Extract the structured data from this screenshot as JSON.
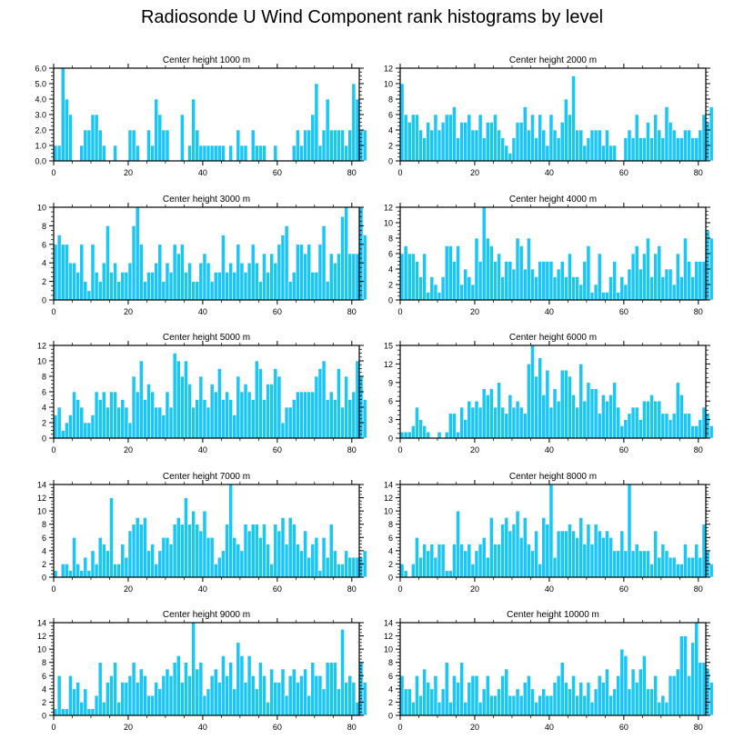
{
  "title": "Radiosonde U Wind Component rank histograms by level",
  "colors": {
    "bar": "#19c6f5",
    "bar_edge": "#ffffff",
    "axis": "#000000"
  },
  "chart_data": [
    {
      "type": "bar",
      "title": "Center height 1000 m",
      "xlim": [
        0,
        82
      ],
      "ylim": [
        0,
        6
      ],
      "xticks": [
        "0",
        "20",
        "40",
        "60",
        "80"
      ],
      "yticks": [
        "0.0",
        "1.0",
        "2.0",
        "3.0",
        "4.0",
        "5.0",
        "6.0"
      ],
      "values": [
        1,
        1,
        6,
        4,
        3,
        0,
        0,
        1,
        2,
        2,
        3,
        3,
        2,
        1,
        0,
        0,
        1,
        0,
        0,
        0,
        2,
        2,
        1,
        0,
        0,
        2,
        1,
        4,
        3,
        2,
        2,
        0,
        0,
        0,
        3,
        0,
        1,
        4,
        2,
        1,
        1,
        1,
        1,
        1,
        1,
        1,
        0,
        1,
        0,
        2,
        1,
        1,
        0,
        2,
        1,
        1,
        1,
        0,
        0,
        1,
        0,
        0,
        0,
        0,
        1,
        2,
        1,
        2,
        2,
        3,
        5,
        1,
        2,
        4,
        2,
        2,
        2,
        2,
        1,
        2,
        5,
        4,
        2,
        2
      ]
    },
    {
      "type": "bar",
      "title": "Center height 2000 m",
      "xlim": [
        0,
        82
      ],
      "ylim": [
        0,
        12
      ],
      "xticks": [
        "0",
        "20",
        "40",
        "60",
        "80"
      ],
      "yticks": [
        "0",
        "2",
        "4",
        "6",
        "8",
        "10",
        "12"
      ],
      "values": [
        10,
        6,
        5,
        6,
        6,
        4,
        3,
        5,
        4,
        6,
        4,
        5,
        6,
        6,
        7,
        3,
        5,
        5,
        6,
        4,
        4,
        6,
        3,
        5,
        5,
        6,
        4,
        3,
        2,
        1,
        3,
        5,
        5,
        7,
        4,
        6,
        3,
        6,
        4,
        2,
        6,
        4,
        3,
        5,
        8,
        6,
        11,
        4,
        4,
        2,
        3,
        4,
        4,
        4,
        2,
        4,
        2,
        2,
        0,
        0,
        3,
        4,
        3,
        6,
        3,
        3,
        5,
        3,
        6,
        4,
        3,
        7,
        5,
        4,
        3,
        3,
        4,
        4,
        3,
        3,
        4,
        6,
        5,
        7
      ]
    },
    {
      "type": "bar",
      "title": "Center height 3000 m",
      "xlim": [
        0,
        82
      ],
      "ylim": [
        0,
        10
      ],
      "xticks": [
        "0",
        "20",
        "40",
        "60",
        "80"
      ],
      "yticks": [
        "0",
        "2",
        "4",
        "6",
        "8",
        "10"
      ],
      "values": [
        6,
        7,
        6,
        6,
        4,
        4,
        3,
        6,
        2,
        1,
        6,
        3,
        2,
        4,
        8,
        3,
        4,
        2,
        3,
        3,
        4,
        8,
        10,
        6,
        2,
        3,
        3,
        4,
        6,
        2,
        4,
        3,
        6,
        5,
        6,
        3,
        4,
        2,
        2,
        4,
        5,
        4,
        2,
        3,
        3,
        7,
        3,
        4,
        3,
        6,
        4,
        3,
        4,
        6,
        4,
        2,
        5,
        3,
        5,
        4,
        6,
        7,
        8,
        2,
        3,
        6,
        6,
        5,
        6,
        3,
        3,
        6,
        8,
        2,
        5,
        4,
        5,
        9,
        10,
        5,
        5,
        5,
        10,
        7
      ]
    },
    {
      "type": "bar",
      "title": "Center height 4000 m",
      "xlim": [
        0,
        82
      ],
      "ylim": [
        0,
        12
      ],
      "xticks": [
        "0",
        "20",
        "40",
        "60",
        "80"
      ],
      "yticks": [
        "0",
        "2",
        "4",
        "6",
        "8",
        "10",
        "12"
      ],
      "values": [
        6,
        7,
        6,
        6,
        5,
        3,
        6,
        1,
        3,
        2,
        1,
        3,
        7,
        7,
        5,
        7,
        2,
        4,
        3,
        2,
        8,
        5,
        12,
        8,
        7,
        5,
        6,
        3,
        5,
        5,
        4,
        8,
        7,
        4,
        8,
        4,
        3,
        5,
        5,
        5,
        5,
        3,
        4,
        5,
        3,
        6,
        3,
        3,
        2,
        5,
        7,
        1,
        2,
        6,
        1,
        1,
        3,
        5,
        1,
        3,
        2,
        4,
        6,
        7,
        4,
        6,
        8,
        3,
        6,
        7,
        3,
        4,
        4,
        2,
        6,
        3,
        8,
        5,
        3,
        5,
        5,
        5,
        9,
        8
      ]
    },
    {
      "type": "bar",
      "title": "Center height 5000 m",
      "xlim": [
        0,
        82
      ],
      "ylim": [
        0,
        12
      ],
      "xticks": [
        "0",
        "20",
        "40",
        "60",
        "80"
      ],
      "yticks": [
        "0",
        "2",
        "4",
        "6",
        "8",
        "10",
        "12"
      ],
      "values": [
        3,
        4,
        1,
        2,
        3,
        6,
        5,
        4,
        2,
        2,
        3,
        6,
        5,
        6,
        4,
        6,
        6,
        4,
        5,
        4,
        2,
        8,
        6,
        10,
        5,
        7,
        6,
        4,
        4,
        3,
        6,
        4,
        11,
        10,
        8,
        10,
        7,
        4,
        5,
        8,
        5,
        4,
        7,
        6,
        9,
        5,
        6,
        5,
        3,
        8,
        6,
        7,
        6,
        5,
        10,
        9,
        5,
        7,
        7,
        9,
        8,
        2,
        4,
        4,
        5,
        6,
        6,
        6,
        6,
        6,
        8,
        9,
        10,
        5,
        6,
        5,
        9,
        4,
        8,
        5,
        6,
        10,
        8,
        5
      ]
    },
    {
      "type": "bar",
      "title": "Center height 6000 m",
      "xlim": [
        0,
        82
      ],
      "ylim": [
        0,
        15
      ],
      "xticks": [
        "0",
        "20",
        "40",
        "60",
        "80"
      ],
      "yticks": [
        "0",
        "3",
        "6",
        "9",
        "12",
        "15"
      ],
      "values": [
        1,
        1,
        1,
        2,
        5,
        3,
        2,
        1,
        0,
        0,
        1,
        0,
        1,
        4,
        4,
        1,
        5,
        3,
        6,
        5,
        6,
        5,
        8,
        7,
        8,
        5,
        9,
        5,
        4,
        7,
        5,
        6,
        5,
        4,
        12,
        15,
        10,
        13,
        7,
        11,
        5,
        8,
        6,
        11,
        11,
        10,
        7,
        5,
        12,
        6,
        9,
        8,
        8,
        4,
        7,
        6,
        7,
        9,
        5,
        2,
        3,
        4,
        5,
        5,
        3,
        6,
        6,
        7,
        6,
        6,
        4,
        4,
        3,
        4,
        9,
        7,
        4,
        4,
        2,
        2,
        3,
        5,
        4,
        2
      ]
    },
    {
      "type": "bar",
      "title": "Center height 7000 m",
      "xlim": [
        0,
        82
      ],
      "ylim": [
        0,
        14
      ],
      "xticks": [
        "0",
        "20",
        "40",
        "60",
        "80"
      ],
      "yticks": [
        "0",
        "2",
        "4",
        "6",
        "8",
        "10",
        "12",
        "14"
      ],
      "values": [
        1,
        0,
        2,
        2,
        1,
        6,
        2,
        1,
        3,
        1,
        4,
        2,
        6,
        5,
        4,
        12,
        2,
        2,
        5,
        3,
        7,
        8,
        9,
        8,
        9,
        4,
        5,
        2,
        4,
        6,
        6,
        5,
        8,
        9,
        8,
        12,
        8,
        10,
        8,
        7,
        10,
        6,
        6,
        2,
        3,
        4,
        8,
        14,
        6,
        5,
        4,
        8,
        7,
        8,
        8,
        6,
        8,
        5,
        2,
        8,
        7,
        9,
        5,
        9,
        8,
        5,
        4,
        7,
        3,
        5,
        6,
        1,
        6,
        3,
        8,
        4,
        2,
        2,
        4,
        3,
        3,
        3,
        3,
        4
      ]
    },
    {
      "type": "bar",
      "title": "Center height 8000 m",
      "xlim": [
        0,
        82
      ],
      "ylim": [
        0,
        14
      ],
      "xticks": [
        "0",
        "20",
        "40",
        "60",
        "80"
      ],
      "yticks": [
        "0",
        "2",
        "4",
        "6",
        "8",
        "10",
        "12",
        "14"
      ],
      "values": [
        2,
        1,
        0,
        2,
        6,
        3,
        5,
        4,
        5,
        3,
        5,
        5,
        1,
        1,
        5,
        10,
        5,
        4,
        5,
        2,
        4,
        5,
        6,
        3,
        9,
        5,
        5,
        8,
        9,
        7,
        8,
        10,
        6,
        9,
        5,
        4,
        7,
        2,
        9,
        8,
        14,
        3,
        7,
        7,
        7,
        8,
        7,
        6,
        9,
        5,
        8,
        5,
        8,
        7,
        6,
        7,
        6,
        4,
        4,
        7,
        4,
        14,
        4,
        5,
        4,
        4,
        4,
        2,
        7,
        3,
        5,
        4,
        3,
        3,
        2,
        2,
        5,
        3,
        3,
        5,
        3,
        8,
        4,
        2
      ]
    },
    {
      "type": "bar",
      "title": "Center height 9000 m",
      "xlim": [
        0,
        82
      ],
      "ylim": [
        0,
        14
      ],
      "xticks": [
        "0",
        "20",
        "40",
        "60",
        "80"
      ],
      "yticks": [
        "0",
        "2",
        "4",
        "6",
        "8",
        "10",
        "12",
        "14"
      ],
      "values": [
        1,
        6,
        1,
        1,
        6,
        4,
        5,
        2,
        4,
        1,
        1,
        3,
        8,
        2,
        5,
        6,
        8,
        2,
        5,
        5,
        6,
        8,
        5,
        7,
        6,
        3,
        3,
        5,
        4,
        6,
        7,
        6,
        8,
        9,
        5,
        8,
        6,
        14,
        7,
        8,
        3,
        4,
        6,
        7,
        5,
        9,
        6,
        8,
        4,
        11,
        9,
        5,
        9,
        6,
        4,
        8,
        6,
        2,
        7,
        5,
        5,
        7,
        3,
        6,
        7,
        5,
        6,
        7,
        3,
        8,
        6,
        6,
        4,
        8,
        8,
        8,
        4,
        13,
        5,
        6,
        5,
        2,
        8,
        5
      ]
    },
    {
      "type": "bar",
      "title": "Center height 10000 m",
      "xlim": [
        0,
        82
      ],
      "ylim": [
        0,
        14
      ],
      "xticks": [
        "0",
        "20",
        "40",
        "60",
        "80"
      ],
      "yticks": [
        "0",
        "2",
        "4",
        "6",
        "8",
        "10",
        "12",
        "14"
      ],
      "values": [
        6,
        4,
        4,
        2,
        6,
        3,
        7,
        5,
        4,
        6,
        2,
        4,
        8,
        2,
        6,
        5,
        8,
        2,
        5,
        6,
        6,
        2,
        4,
        6,
        3,
        3,
        4,
        6,
        7,
        3,
        3,
        4,
        3,
        5,
        6,
        4,
        2,
        3,
        4,
        3,
        3,
        5,
        6,
        8,
        5,
        4,
        6,
        3,
        5,
        3,
        5,
        2,
        4,
        6,
        5,
        7,
        3,
        4,
        6,
        10,
        9,
        4,
        7,
        5,
        7,
        9,
        4,
        4,
        6,
        2,
        3,
        2,
        6,
        6,
        7,
        12,
        12,
        6,
        11,
        14,
        8,
        8,
        7,
        5
      ]
    }
  ]
}
